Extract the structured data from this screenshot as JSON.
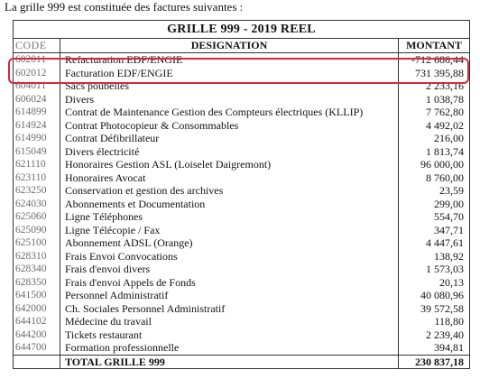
{
  "intro": "La grille 999 est constituée des factures suivantes :",
  "table": {
    "title": "GRILLE  999 - 2019 REEL",
    "headers": {
      "code": "CODE",
      "designation": "DESIGNATION",
      "montant": "MONTANT"
    },
    "rows": [
      {
        "code": "602011",
        "designation": "Refacturation EDF/ENGIE",
        "montant": "-712 686,44"
      },
      {
        "code": "602012",
        "designation": "Facturation EDF/ENGIE",
        "montant": "731 395,88"
      },
      {
        "code": "604011",
        "designation": "Sacs poubelles",
        "montant": "2 233,16"
      },
      {
        "code": "606024",
        "designation": "Divers",
        "montant": "1 038,78"
      },
      {
        "code": "614899",
        "designation": "Contrat de Maintenance Gestion des Compteurs électriques (KLLIP)",
        "montant": "7 762,80"
      },
      {
        "code": "614924",
        "designation": "Contrat Photocopieur & Consommables",
        "montant": "4 492,02"
      },
      {
        "code": "614990",
        "designation": "Contrat Défibrillateur",
        "montant": "216,00"
      },
      {
        "code": "615049",
        "designation": "Divers électricité",
        "montant": "1 813,74"
      },
      {
        "code": "621110",
        "designation": "Honoraires Gestion ASL (Loiselet Daigremont)",
        "montant": "96 000,00"
      },
      {
        "code": "623110",
        "designation": "Honoraires Avocat",
        "montant": "8 760,00"
      },
      {
        "code": "623250",
        "designation": "Conservation et gestion des archives",
        "montant": "23,59"
      },
      {
        "code": "624030",
        "designation": "Abonnements et Documentation",
        "montant": "299,00"
      },
      {
        "code": "625060",
        "designation": "Ligne Téléphones",
        "montant": "554,70"
      },
      {
        "code": "625090",
        "designation": "Ligne Télécopie / Fax",
        "montant": "347,71"
      },
      {
        "code": "625100",
        "designation": "Abonnement ADSL (Orange)",
        "montant": "4 447,61"
      },
      {
        "code": "628310",
        "designation": "Frais Envoi Convocations",
        "montant": "138,92"
      },
      {
        "code": "628340",
        "designation": "Frais d'envoi divers",
        "montant": "1 573,03"
      },
      {
        "code": "628350",
        "designation": "Frais d'envoi Appels de Fonds",
        "montant": "20,13"
      },
      {
        "code": "641500",
        "designation": "Personnel Administratif",
        "montant": "40 080,96"
      },
      {
        "code": "642000",
        "designation": "Ch. Sociales Personnel Administratif",
        "montant": "39 572,58"
      },
      {
        "code": "644102",
        "designation": "Médecine du travail",
        "montant": "118,80"
      },
      {
        "code": "644200",
        "designation": "Tickets restaurant",
        "montant": "2 239,40"
      },
      {
        "code": "644700",
        "designation": "Formation professionnelle",
        "montant": "394,81"
      }
    ],
    "total": {
      "label": "TOTAL GRILLE 999",
      "montant": "230 837,18"
    }
  },
  "highlight_color": "#d7263d"
}
